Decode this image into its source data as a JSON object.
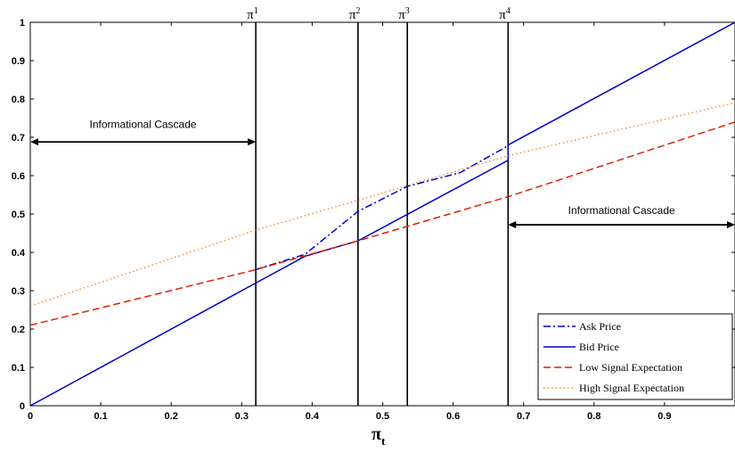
{
  "chart_data": {
    "type": "line",
    "title": "",
    "xlabel_main": "π",
    "xlabel_sub": "t",
    "ylabel": "",
    "xlim": [
      0,
      1
    ],
    "ylim": [
      0,
      1
    ],
    "grid": false,
    "legend_position": "bottom-right",
    "xticks": [
      "0",
      "0.1",
      "0.2",
      "0.3",
      "0.4",
      "0.5",
      "0.6",
      "0.7",
      "0.8",
      "0.9"
    ],
    "xtick_values": [
      0,
      0.1,
      0.2,
      0.3,
      0.4,
      0.5,
      0.6,
      0.7,
      0.8,
      0.9
    ],
    "yticks": [
      "0",
      "0.1",
      "0.2",
      "0.3",
      "0.4",
      "0.5",
      "0.6",
      "0.7",
      "0.8",
      "0.9",
      "1"
    ],
    "ytick_values": [
      0,
      0.1,
      0.2,
      0.3,
      0.4,
      0.5,
      0.6,
      0.7,
      0.8,
      0.9,
      1
    ],
    "series": [
      {
        "name": "Ask Price",
        "color": "#0000cc",
        "style": "dashdot",
        "points": [
          [
            0.32,
            0.355
          ],
          [
            0.39,
            0.395
          ],
          [
            0.465,
            0.507
          ],
          [
            0.535,
            0.572
          ],
          [
            0.61,
            0.608
          ],
          [
            0.678,
            0.678
          ]
        ]
      },
      {
        "name": "Bid Price",
        "color": "#0000cc",
        "style": "solid",
        "points": [
          [
            0,
            0
          ],
          [
            0.32,
            0.32
          ],
          [
            0.39,
            0.39
          ],
          [
            0.465,
            0.43
          ],
          [
            0.678,
            0.64
          ],
          [
            0.678,
            0.68
          ],
          [
            1,
            1
          ]
        ]
      },
      {
        "name": "Low Signal Expectation",
        "color": "#dd2200",
        "style": "dashed",
        "points": [
          [
            0,
            0.21
          ],
          [
            0.32,
            0.355
          ],
          [
            0.465,
            0.43
          ],
          [
            0.678,
            0.545
          ],
          [
            1,
            0.74
          ]
        ]
      },
      {
        "name": "High Signal Expectation",
        "color": "#ee8833",
        "style": "dotted",
        "points": [
          [
            0,
            0.26
          ],
          [
            0.32,
            0.458
          ],
          [
            0.465,
            0.536
          ],
          [
            0.678,
            0.652
          ],
          [
            1,
            0.79
          ]
        ]
      }
    ],
    "vertical_lines": [
      {
        "x": 0.32,
        "label": "π",
        "sup": "1"
      },
      {
        "x": 0.465,
        "label": "π",
        "sup": "2"
      },
      {
        "x": 0.535,
        "label": "π",
        "sup": "3"
      },
      {
        "x": 0.678,
        "label": "π",
        "sup": "4"
      }
    ],
    "annotations": [
      {
        "text": "Informational Cascade",
        "x_from": 0,
        "x_to": 0.32,
        "y": 0.688,
        "text_y": 0.725
      },
      {
        "text": "Informational Cascade",
        "x_from": 0.678,
        "x_to": 1,
        "y": 0.472,
        "text_y": 0.5
      }
    ]
  }
}
